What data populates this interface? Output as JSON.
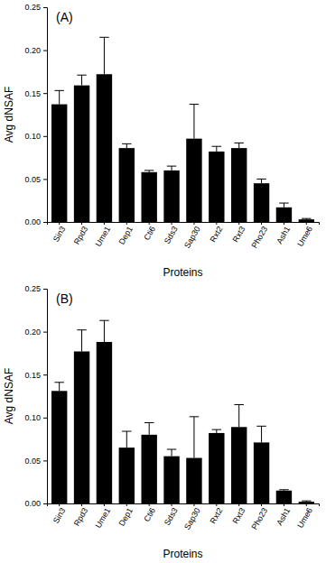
{
  "chart_data": [
    {
      "type": "bar",
      "title": "(A)",
      "x_label": "Proteins",
      "y_label": "Avg dNSAF",
      "color": "#000000",
      "categories": [
        "Sin3",
        "Rpd3",
        "Ume1",
        "Dep1",
        "Cti6",
        "Sds3",
        "Sap30",
        "Rxt2",
        "Rxt3",
        "Pho23",
        "Ash1",
        "Ume6"
      ],
      "values": [
        0.137,
        0.159,
        0.172,
        0.086,
        0.058,
        0.06,
        0.097,
        0.082,
        0.086,
        0.045,
        0.017,
        0.003
      ],
      "errors": [
        0.016,
        0.012,
        0.043,
        0.005,
        0.002,
        0.005,
        0.04,
        0.006,
        0.006,
        0.005,
        0.005,
        0.001
      ],
      "ylim": [
        0,
        0.25
      ],
      "yticks": [
        {
          "value": 0,
          "label": "0.00"
        },
        {
          "value": 0.05,
          "label": "0.05"
        },
        {
          "value": 0.1,
          "label": "0.10"
        },
        {
          "value": 0.15,
          "label": "0.15"
        },
        {
          "value": 0.2,
          "label": "0.20"
        },
        {
          "value": 0.25,
          "label": "0.25"
        }
      ],
      "grid": false
    },
    {
      "type": "bar",
      "title": "(B)",
      "x_label": "Proteins",
      "y_label": "Avg dNSAF",
      "color": "#000000",
      "categories": [
        "Sin3",
        "Rpd3",
        "Ume1",
        "Dep1",
        "Cti6",
        "Sds3",
        "Sap30",
        "Rxt2",
        "Rxt3",
        "Pho23",
        "Ash1",
        "Ume6"
      ],
      "values": [
        0.131,
        0.177,
        0.188,
        0.065,
        0.08,
        0.055,
        0.053,
        0.082,
        0.089,
        0.071,
        0.015,
        0.002
      ],
      "errors": [
        0.01,
        0.025,
        0.025,
        0.019,
        0.014,
        0.008,
        0.048,
        0.004,
        0.026,
        0.019,
        0.001,
        0.001
      ],
      "ylim": [
        0,
        0.25
      ],
      "yticks": [
        {
          "value": 0,
          "label": "0.00"
        },
        {
          "value": 0.05,
          "label": "0.05"
        },
        {
          "value": 0.1,
          "label": "0.10"
        },
        {
          "value": 0.15,
          "label": "0.15"
        },
        {
          "value": 0.2,
          "label": "0.20"
        },
        {
          "value": 0.25,
          "label": "0.25"
        }
      ],
      "grid": false
    }
  ]
}
